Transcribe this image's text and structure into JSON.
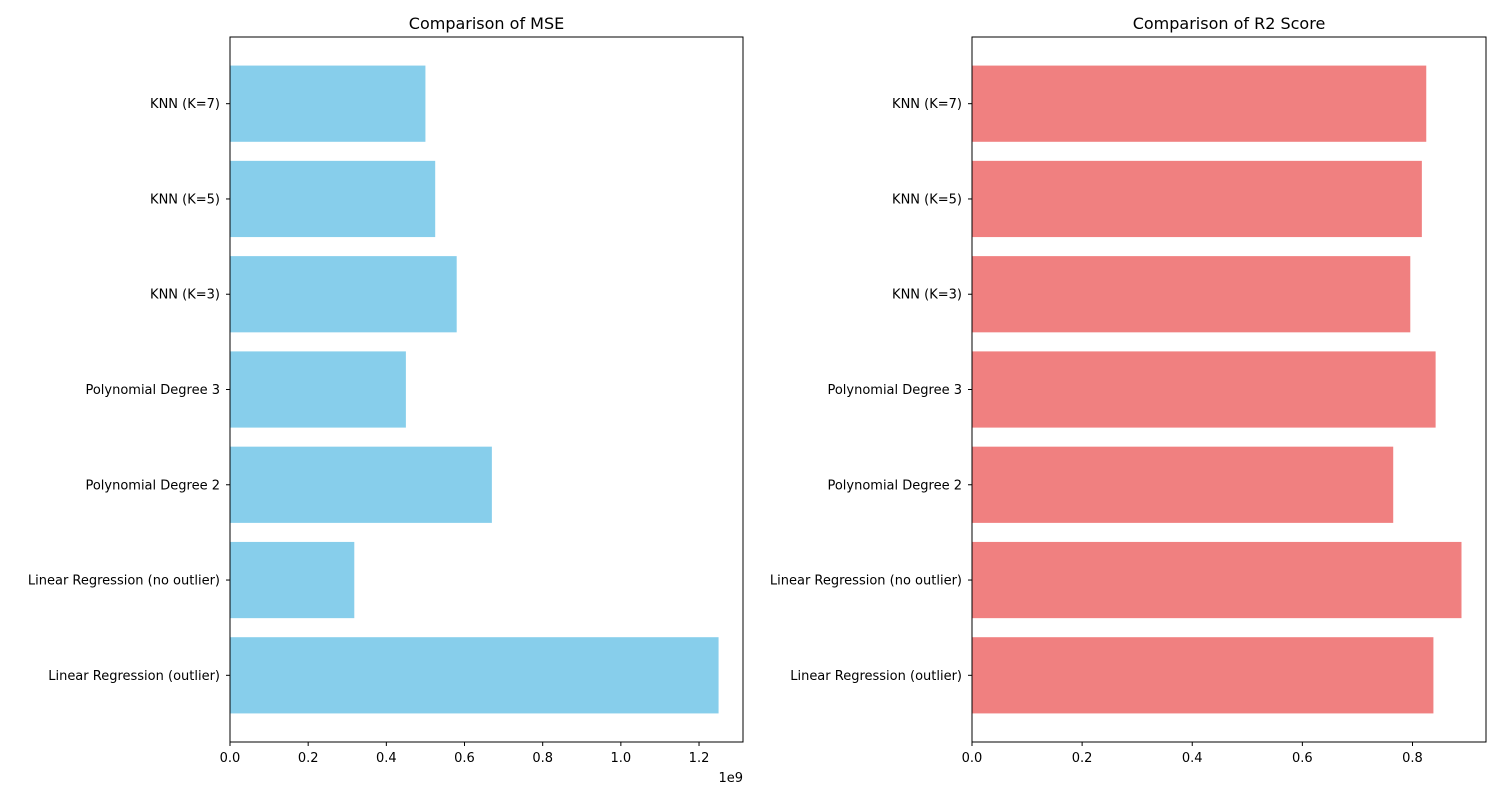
{
  "chart_data": [
    {
      "type": "bar",
      "orientation": "horizontal",
      "title": "Comparison of MSE",
      "categories": [
        "Linear Regression (outlier)",
        "Linear Regression (no outlier)",
        "Polynomial Degree 2",
        "Polynomial Degree 3",
        "KNN (K=3)",
        "KNN (K=5)",
        "KNN (K=7)"
      ],
      "values": [
        1250000000,
        318000000,
        670000000,
        450000000,
        580000000,
        525000000,
        500000000
      ],
      "xticks": [
        0,
        200000000,
        400000000,
        600000000,
        800000000,
        1000000000,
        1200000000
      ],
      "xtick_labels": [
        "0.0",
        "0.2",
        "0.4",
        "0.6",
        "0.8",
        "1.0",
        "1.2"
      ],
      "axis_offset_label": "1e9",
      "xlim": [
        0,
        1312500000
      ],
      "color": "#87CEEB",
      "grid": false
    },
    {
      "type": "bar",
      "orientation": "horizontal",
      "title": "Comparison of R2 Score",
      "categories": [
        "Linear Regression (outlier)",
        "Linear Regression (no outlier)",
        "Polynomial Degree 2",
        "Polynomial Degree 3",
        "KNN (K=3)",
        "KNN (K=5)",
        "KNN (K=7)"
      ],
      "values": [
        0.838,
        0.889,
        0.765,
        0.842,
        0.796,
        0.817,
        0.825
      ],
      "xticks": [
        0,
        0.2,
        0.4,
        0.6,
        0.8
      ],
      "xtick_labels": [
        "0.0",
        "0.2",
        "0.4",
        "0.6",
        "0.8"
      ],
      "axis_offset_label": "",
      "xlim": [
        0,
        0.9335
      ],
      "color": "#F08080",
      "grid": false
    }
  ]
}
